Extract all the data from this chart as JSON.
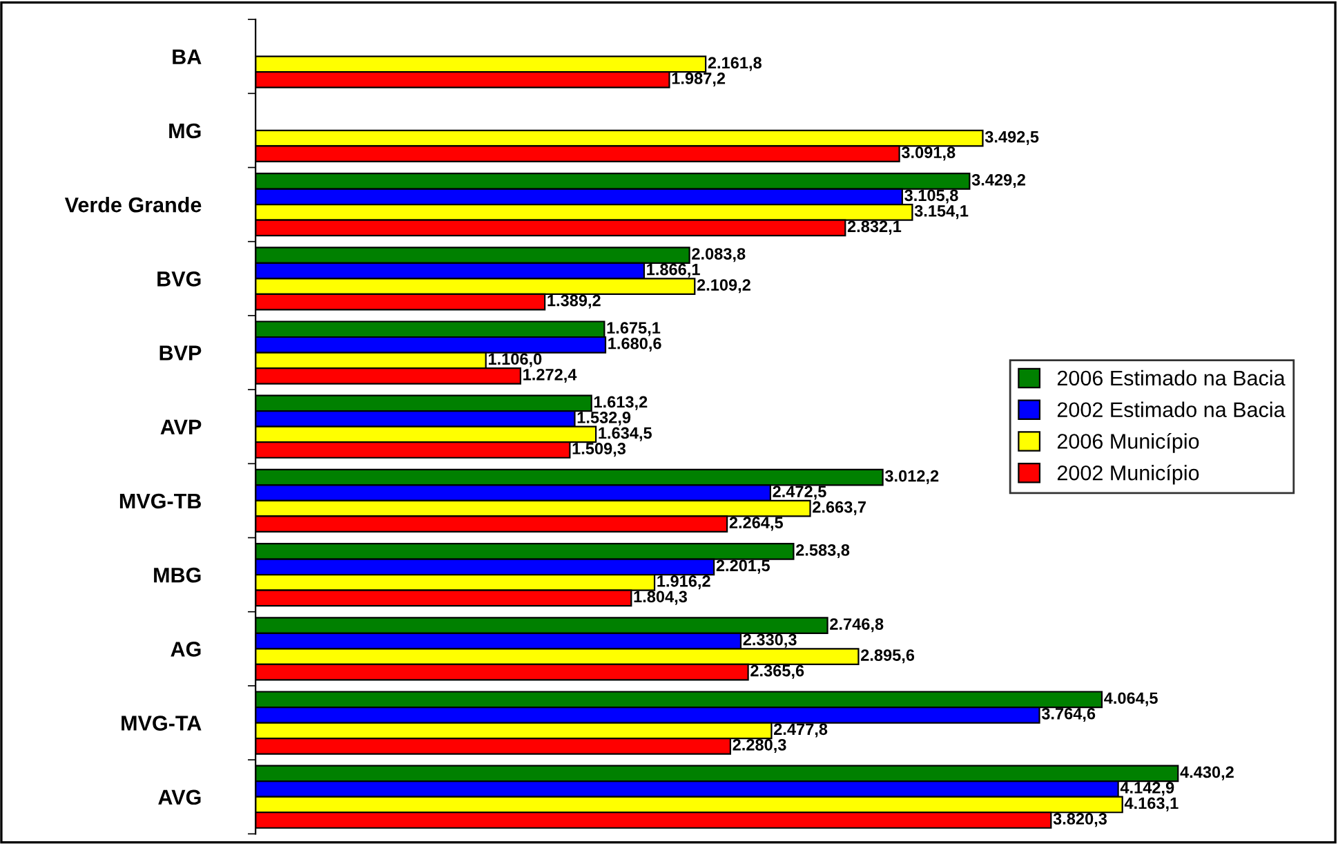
{
  "chart_data": {
    "type": "bar",
    "orientation": "horizontal",
    "categories": [
      "BA",
      "MG",
      "Verde Grande",
      "BVG",
      "BVP",
      "AVP",
      "MVG-TB",
      "MBG",
      "AG",
      "MVG-TA",
      "AVG"
    ],
    "series": [
      {
        "name": "2006 Estimado na Bacia",
        "color": "#008000",
        "values": [
          null,
          null,
          3429.2,
          2083.8,
          1675.1,
          1613.2,
          3012.2,
          2583.8,
          2746.8,
          4064.5,
          4430.2
        ],
        "value_labels": [
          null,
          null,
          "3.429,2",
          "2.083,8",
          "1.675,1",
          "1.613,2",
          "3.012,2",
          "2.583,8",
          "2.746,8",
          "4.064,5",
          "4.430,2"
        ]
      },
      {
        "name": "2002 Estimado na Bacia",
        "color": "#0000ff",
        "values": [
          null,
          null,
          3105.8,
          1866.1,
          1680.6,
          1532.9,
          2472.5,
          2201.5,
          2330.3,
          3764.6,
          4142.9
        ],
        "value_labels": [
          null,
          null,
          "3.105,8",
          "1.866,1",
          "1.680,6",
          "1.532,9",
          "2.472,5",
          "2.201,5",
          "2.330,3",
          "3.764,6",
          "4.142,9"
        ]
      },
      {
        "name": "2006 Município",
        "color": "#ffff00",
        "values": [
          2161.8,
          3492.5,
          3154.1,
          2109.2,
          1106.0,
          1634.5,
          2663.7,
          1916.2,
          2895.6,
          2477.8,
          4163.1
        ],
        "value_labels": [
          "2.161,8",
          "3.492,5",
          "3.154,1",
          "2.109,2",
          "1.106,0",
          "1.634,5",
          "2.663,7",
          "1.916,2",
          "2.895,6",
          "2.477,8",
          "4.163,1"
        ]
      },
      {
        "name": "2002 Município",
        "color": "#ff0000",
        "values": [
          1987.2,
          3091.8,
          2832.1,
          1389.2,
          1272.4,
          1509.3,
          2264.5,
          1804.3,
          2365.6,
          2280.3,
          3820.3
        ],
        "value_labels": [
          "1.987,2",
          "3.091,8",
          "2.832,1",
          "1.389,2",
          "1.272,4",
          "1.509,3",
          "2.264,5",
          "1.804,3",
          "2.365,6",
          "2.280,3",
          "3.820,3"
        ]
      }
    ],
    "legend": "right",
    "grid": false
  }
}
